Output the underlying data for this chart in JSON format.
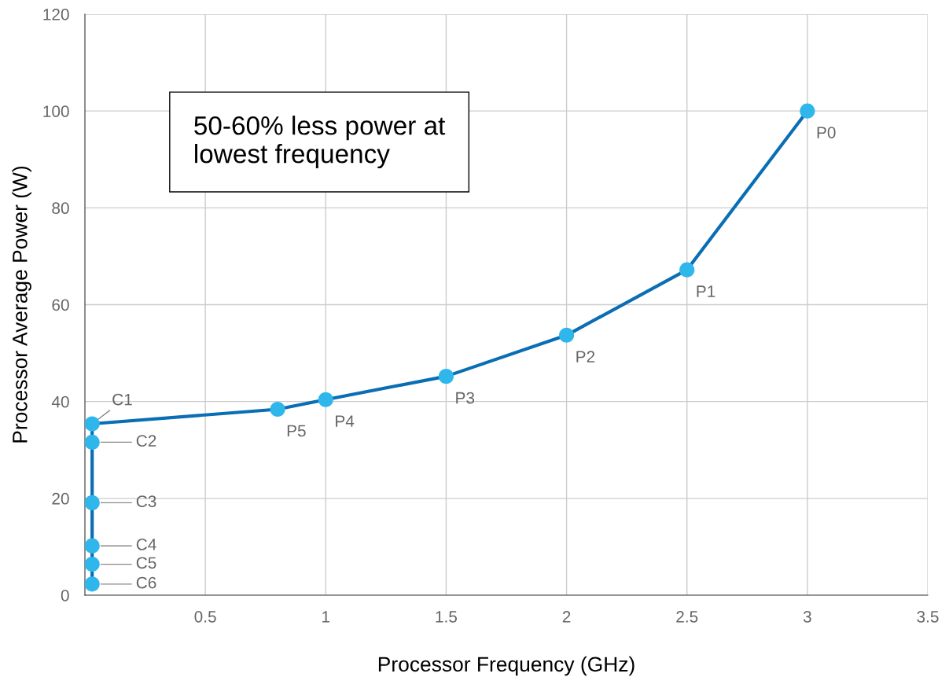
{
  "chart_data": {
    "type": "line",
    "xlabel": "Processor Frequency (GHz)",
    "ylabel": "Processor Average Power (W)",
    "series": [
      {
        "color": "#0a6eb4",
        "colors": [
          "#2fb6ea",
          "#2fb6ea",
          "#2fb6ea",
          "#2fb6ea",
          "#2fb6ea",
          "#2fb6ea",
          "#2fb6ea",
          "#2fb6ea",
          "#2fb6ea",
          "#2fb6ea",
          "#2fb6ea",
          "#2fb6ea"
        ],
        "x": [
          0.03,
          0.03,
          0.03,
          0.03,
          0.03,
          0.03,
          0.8,
          1,
          1.5,
          2,
          2.5,
          3
        ],
        "values": [
          2.3,
          6.4,
          10.2,
          19.1,
          31.6,
          35.4,
          38.4,
          40.4,
          45.2,
          53.7,
          67.2,
          100
        ]
      }
    ],
    "marker": "circle",
    "xlim": [
      0,
      3.5
    ],
    "xticks": [
      0.5,
      1,
      1.5,
      2,
      2.5,
      3,
      3.5
    ],
    "ylim": [
      0,
      120
    ],
    "yticks": [
      0,
      20,
      40,
      60,
      80,
      100,
      120
    ],
    "grid": true,
    "annotations": [
      {
        "text": "C6",
        "x": 0.03,
        "y": 2.3
      },
      {
        "text": "C5",
        "x": 0.03,
        "y": 6.4
      },
      {
        "text": "C4",
        "x": 0.03,
        "y": 10.2
      },
      {
        "text": "C3",
        "x": 0.03,
        "y": 19.1
      },
      {
        "text": "C2",
        "x": 0.03,
        "y": 31.6
      },
      {
        "text": "C1",
        "x": 0.03,
        "y": 35.4
      },
      {
        "text": "P5",
        "x": 0.8,
        "y": 38.4
      },
      {
        "text": "P4",
        "x": 1,
        "y": 40.4
      },
      {
        "text": "P3",
        "x": 1.5,
        "y": 45.2
      },
      {
        "text": "P2",
        "x": 2,
        "y": 53.7
      },
      {
        "text": "P1",
        "x": 2.5,
        "y": 67.2
      },
      {
        "text": "P0",
        "x": 3,
        "y": 100
      },
      "50-60% less power at\nlowest frequency"
    ]
  }
}
